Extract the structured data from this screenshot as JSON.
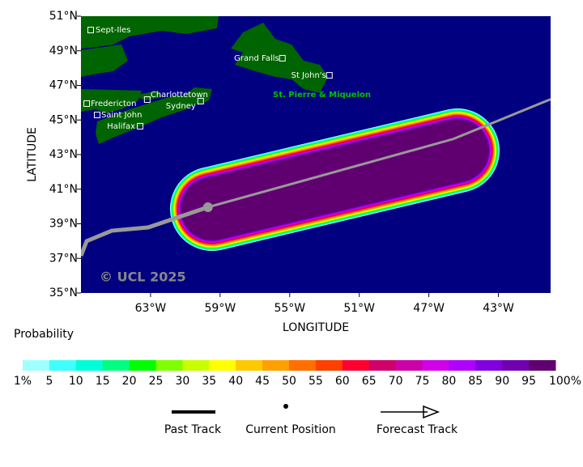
{
  "map": {
    "xlabel": "LONGITUDE",
    "ylabel": "LATITUDE",
    "xlim": [
      -67,
      -40
    ],
    "ylim": [
      35,
      51
    ],
    "xticks": [
      {
        "value": -63,
        "label": "63°W"
      },
      {
        "value": -59,
        "label": "59°W"
      },
      {
        "value": -55,
        "label": "55°W"
      },
      {
        "value": -51,
        "label": "51°W"
      },
      {
        "value": -47,
        "label": "47°W"
      },
      {
        "value": -43,
        "label": "43°W"
      }
    ],
    "yticks": [
      {
        "value": 51,
        "label": "51°N"
      },
      {
        "value": 49,
        "label": "49°N"
      },
      {
        "value": 47,
        "label": "47°N"
      },
      {
        "value": 45,
        "label": "45°N"
      },
      {
        "value": 43,
        "label": "43°N"
      },
      {
        "value": 41,
        "label": "41°N"
      },
      {
        "value": 39,
        "label": "39°N"
      },
      {
        "value": 37,
        "label": "37°N"
      },
      {
        "value": 35,
        "label": "35°N"
      }
    ],
    "cities": [
      {
        "name": "Sept-Iles",
        "lon": -66.44,
        "lat": 50.2
      },
      {
        "name": "Grand Falls",
        "lon": -55.42,
        "lat": 48.57
      },
      {
        "name": "St John's",
        "lon": -52.72,
        "lat": 47.58
      },
      {
        "name": "Charlottetown",
        "lon": -63.19,
        "lat": 46.18
      },
      {
        "name": "Sydney",
        "lon": -60.12,
        "lat": 46.09
      },
      {
        "name": "Fredericton",
        "lon": -66.67,
        "lat": 45.95
      },
      {
        "name": "Saint John",
        "lon": -66.07,
        "lat": 45.29
      },
      {
        "name": "Halifax",
        "lon": -63.6,
        "lat": 44.64
      }
    ],
    "annotation": "St. Pierre & Miquelon",
    "copyright": "© UCL 2025",
    "past_track": {
      "lon": [
        -67,
        -66.67,
        -65.23,
        -63.14,
        -59.7
      ],
      "lat": [
        37.15,
        38.0,
        38.6,
        38.79,
        39.96
      ]
    },
    "current_position": {
      "lon": -59.7,
      "lat": 39.96
    },
    "forecast_track": {
      "lon": [
        -59.7,
        -45.6,
        -40
      ],
      "lat": [
        39.96,
        43.9,
        46.2
      ]
    }
  },
  "colorbar": {
    "title": "Probability",
    "labels": [
      "1%",
      "5",
      "10",
      "15",
      "20",
      "25",
      "30",
      "35",
      "40",
      "45",
      "50",
      "55",
      "60",
      "65",
      "70",
      "75",
      "80",
      "85",
      "90",
      "95",
      "100%"
    ],
    "colors": [
      "#a0ffff",
      "#40ffff",
      "#00ffd8",
      "#00ff80",
      "#00ff00",
      "#80ff00",
      "#c8ff00",
      "#ffff00",
      "#ffc800",
      "#ffa000",
      "#ff7000",
      "#ff4000",
      "#ff0030",
      "#d0006a",
      "#cc00a8",
      "#d000e8",
      "#b000ff",
      "#8000e0",
      "#7000b0",
      "#600070"
    ]
  },
  "legend": {
    "past": "Past Track",
    "current": "Current Position",
    "forecast": "Forecast Track"
  }
}
